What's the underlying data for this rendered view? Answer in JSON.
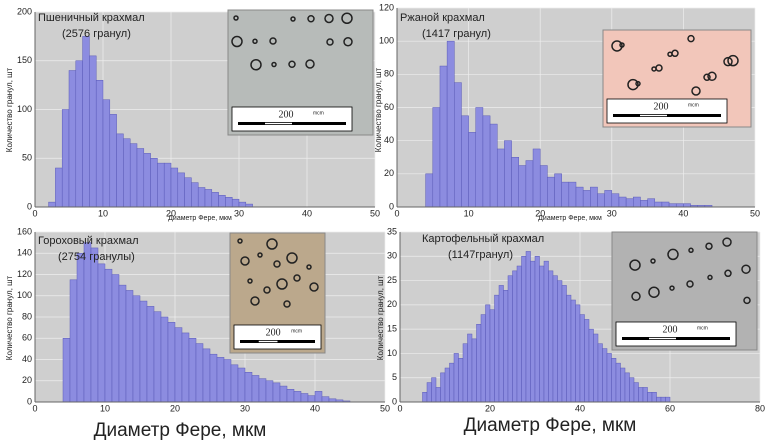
{
  "chart_data": [
    {
      "type": "histogram",
      "title": "Пшеничный крахмал",
      "subtitle": "(2576 гранул)",
      "ylabel": "Количество гранул, шт",
      "xlabel": "Диаметр Фере, мкм",
      "color": "#8c8ce0",
      "inset_color": "#b7bbb9",
      "inset_scale": "200",
      "inset_unit": "mcm",
      "bins": [
        2,
        3,
        4,
        5,
        6,
        7,
        8,
        9,
        10,
        11,
        12,
        13,
        14,
        15,
        16,
        17,
        18,
        19,
        20,
        21,
        22,
        23,
        24,
        25,
        26,
        27,
        28,
        29,
        30,
        31,
        32
      ],
      "values": [
        5,
        40,
        100,
        140,
        150,
        175,
        155,
        130,
        110,
        95,
        75,
        70,
        65,
        60,
        55,
        50,
        45,
        45,
        40,
        35,
        30,
        25,
        20,
        18,
        15,
        12,
        10,
        8,
        5,
        3
      ],
      "xlim": [
        0,
        50
      ],
      "xticks": [
        0,
        10,
        20,
        30,
        40,
        50
      ],
      "ylim": [
        0,
        200
      ],
      "yticks": [
        0,
        50,
        100,
        150,
        200
      ],
      "grid": true
    },
    {
      "type": "histogram",
      "title": "Ржаной крахмал",
      "subtitle": "(1417 гранул)",
      "ylabel": "Количество гранул, шт",
      "xlabel": "Диаметр Фере, мкм",
      "color": "#8c8ce0",
      "inset_color": "#f2c6ba",
      "inset_scale": "200",
      "inset_unit": "mcm",
      "bins": [
        4,
        5,
        6,
        7,
        8,
        9,
        10,
        11,
        12,
        13,
        14,
        15,
        16,
        17,
        18,
        19,
        20,
        21,
        22,
        23,
        24,
        25,
        26,
        27,
        28,
        29,
        30,
        31,
        32,
        33,
        34,
        35,
        36,
        37,
        38,
        39,
        40,
        41,
        42,
        43,
        44
      ],
      "values": [
        20,
        60,
        85,
        100,
        75,
        55,
        45,
        60,
        55,
        50,
        35,
        40,
        30,
        25,
        28,
        35,
        25,
        18,
        20,
        15,
        15,
        12,
        10,
        12,
        8,
        10,
        8,
        6,
        5,
        6,
        4,
        5,
        3,
        3,
        2,
        2,
        2,
        1,
        1,
        1
      ],
      "xlim": [
        0,
        50
      ],
      "xticks": [
        0,
        10,
        20,
        30,
        40,
        50
      ],
      "ylim": [
        0,
        120
      ],
      "yticks": [
        0,
        20,
        40,
        60,
        80,
        100,
        120
      ],
      "grid": true
    },
    {
      "type": "histogram",
      "title": "Гороховый крахмал",
      "subtitle": "(2754 гранулы)",
      "ylabel": "Количество гранул, шт",
      "xlabel": "Диаметр Фере, мкм",
      "color": "#8c8ce0",
      "inset_color": "#bba88c",
      "inset_scale": "200",
      "inset_unit": "mcm",
      "bins": [
        4,
        5,
        6,
        7,
        8,
        9,
        10,
        11,
        12,
        13,
        14,
        15,
        16,
        17,
        18,
        19,
        20,
        21,
        22,
        23,
        24,
        25,
        26,
        27,
        28,
        29,
        30,
        31,
        32,
        33,
        34,
        35,
        36,
        37,
        38,
        39,
        40,
        41,
        42,
        43,
        44,
        45
      ],
      "values": [
        60,
        115,
        140,
        150,
        145,
        130,
        125,
        120,
        110,
        105,
        100,
        95,
        90,
        85,
        80,
        75,
        70,
        65,
        60,
        55,
        50,
        45,
        42,
        40,
        35,
        32,
        28,
        25,
        22,
        20,
        18,
        15,
        12,
        10,
        8,
        6,
        10,
        5,
        3,
        2,
        1
      ],
      "xlim": [
        0,
        50
      ],
      "xticks": [
        0,
        10,
        20,
        30,
        40,
        50
      ],
      "ylim": [
        0,
        160
      ],
      "yticks": [
        0,
        20,
        40,
        60,
        80,
        100,
        120,
        140,
        160
      ],
      "grid": true
    },
    {
      "type": "histogram",
      "title": "Картофельный крахмал",
      "subtitle": "(1147гранул)",
      "ylabel": "Количество гранул, шт",
      "xlabel": "Диаметр Фере, мкм",
      "color": "#8c8ce0",
      "inset_color": "#b2b2b2",
      "inset_scale": "200",
      "inset_unit": "mcm",
      "bins": [
        5,
        6,
        7,
        8,
        9,
        10,
        11,
        12,
        13,
        14,
        15,
        16,
        17,
        18,
        19,
        20,
        21,
        22,
        23,
        24,
        25,
        26,
        27,
        28,
        29,
        30,
        31,
        32,
        33,
        34,
        35,
        36,
        37,
        38,
        39,
        40,
        41,
        42,
        43,
        44,
        45,
        46,
        47,
        48,
        49,
        50,
        51,
        52,
        53,
        54,
        55,
        56,
        57,
        58,
        59,
        60
      ],
      "values": [
        2,
        4,
        5,
        3,
        6,
        7,
        8,
        10,
        9,
        12,
        14,
        13,
        16,
        18,
        20,
        19,
        22,
        24,
        23,
        26,
        27,
        28,
        30,
        31,
        29,
        30,
        28,
        29,
        27,
        26,
        25,
        24,
        22,
        21,
        20,
        18,
        17,
        15,
        14,
        12,
        11,
        10,
        9,
        8,
        7,
        6,
        5,
        4,
        3,
        3,
        2,
        2,
        1,
        1,
        1
      ],
      "xlim": [
        0,
        80
      ],
      "xticks": [
        0,
        20,
        40,
        60,
        80
      ],
      "ylim": [
        0,
        35
      ],
      "yticks": [
        0,
        5,
        10,
        15,
        20,
        25,
        30,
        35
      ],
      "grid": true
    }
  ]
}
